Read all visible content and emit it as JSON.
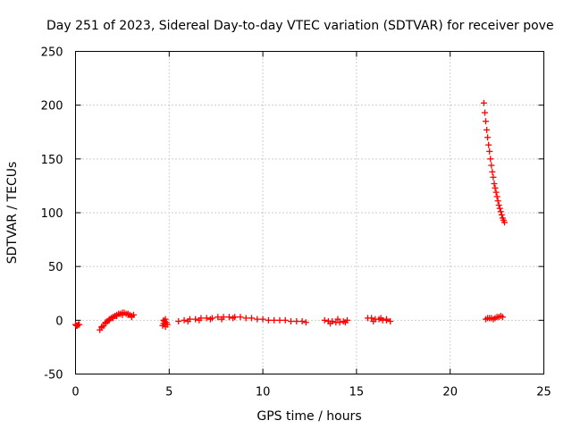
{
  "chart_data": {
    "type": "scatter",
    "title": "Day 251 of 2023, Sidereal Day-to-day VTEC variation (SDTVAR) for receiver pove",
    "xlabel": "GPS time / hours",
    "ylabel": "SDTVAR / TECUs",
    "xlim": [
      0,
      25
    ],
    "ylim": [
      -50,
      250
    ],
    "xticks": [
      0,
      5,
      10,
      15,
      20,
      25
    ],
    "yticks": [
      -50,
      0,
      50,
      100,
      150,
      200,
      250
    ],
    "grid": true,
    "marker": "plus",
    "color": "#ff0000",
    "series": [
      {
        "name": "SDTVAR",
        "segments": [
          {
            "x": [
              0.0,
              0.05,
              0.1,
              0.15,
              0.2
            ],
            "y": [
              -4,
              -5,
              -5,
              -4,
              -4
            ]
          },
          {
            "x": [
              1.3,
              1.4,
              1.5,
              1.6,
              1.7,
              1.8,
              1.9,
              2.0,
              2.1,
              2.2,
              2.3,
              2.4,
              2.5,
              2.6,
              2.7,
              2.8,
              2.9,
              3.0,
              3.1,
              1.4,
              1.6,
              1.8,
              2.0,
              2.2,
              2.5,
              2.8,
              3.0
            ],
            "y": [
              -9,
              -7,
              -5,
              -3,
              -1,
              1,
              2,
              3,
              4,
              5,
              6,
              6,
              7,
              7,
              6,
              6,
              5,
              4,
              5,
              -6,
              -2,
              0,
              2,
              4,
              5,
              5,
              3
            ]
          },
          {
            "x": [
              4.65,
              4.7,
              4.75,
              4.8,
              4.85,
              4.9,
              4.7,
              4.8
            ],
            "y": [
              -5,
              -3,
              -1,
              1,
              -2,
              -4,
              0,
              -6
            ]
          },
          {
            "x": [
              5.5,
              5.8,
              6.1,
              6.4,
              6.7,
              7.0,
              7.3,
              7.6,
              7.9,
              8.2,
              8.5,
              8.8,
              9.1,
              9.4,
              9.7,
              10.0,
              10.3,
              10.6,
              10.9,
              11.2,
              11.5,
              11.8,
              12.1,
              12.3,
              6.0,
              6.6,
              7.2,
              7.8,
              8.4
            ],
            "y": [
              -1,
              0,
              1,
              1,
              2,
              2,
              2,
              3,
              3,
              3,
              3,
              3,
              2,
              2,
              1,
              1,
              0,
              0,
              0,
              0,
              -1,
              -1,
              -1,
              -2,
              -1,
              0,
              1,
              1,
              2
            ]
          },
          {
            "x": [
              13.3,
              13.5,
              13.7,
              13.9,
              14.1,
              14.3,
              14.5,
              13.6,
              14.0,
              14.4
            ],
            "y": [
              0,
              -1,
              -1,
              -2,
              -2,
              -1,
              0,
              -3,
              1,
              -2
            ]
          },
          {
            "x": [
              15.6,
              15.8,
              16.0,
              16.2,
              16.4,
              16.6,
              16.8,
              15.9,
              16.3,
              16.6
            ],
            "y": [
              2,
              2,
              1,
              1,
              0,
              0,
              -1,
              -1,
              2,
              1
            ]
          },
          {
            "x": [
              21.8,
              21.85,
              21.9,
              21.95,
              22.0,
              22.05,
              22.1,
              22.15,
              22.2,
              22.25,
              22.3,
              22.35,
              22.4,
              22.45,
              22.5,
              22.55,
              22.6,
              22.65,
              22.7,
              22.75,
              22.8,
              22.85,
              22.9
            ],
            "y": [
              202,
              193,
              185,
              177,
              170,
              163,
              157,
              150,
              144,
              138,
              133,
              127,
              123,
              119,
              115,
              111,
              107,
              104,
              101,
              98,
              95,
              93,
              91
            ]
          },
          {
            "x": [
              21.9,
              22.0,
              22.1,
              22.2,
              22.3,
              22.4,
              22.5,
              22.6,
              22.7,
              22.8
            ],
            "y": [
              1,
              2,
              2,
              2,
              1,
              2,
              3,
              3,
              4,
              3
            ]
          }
        ]
      }
    ]
  }
}
